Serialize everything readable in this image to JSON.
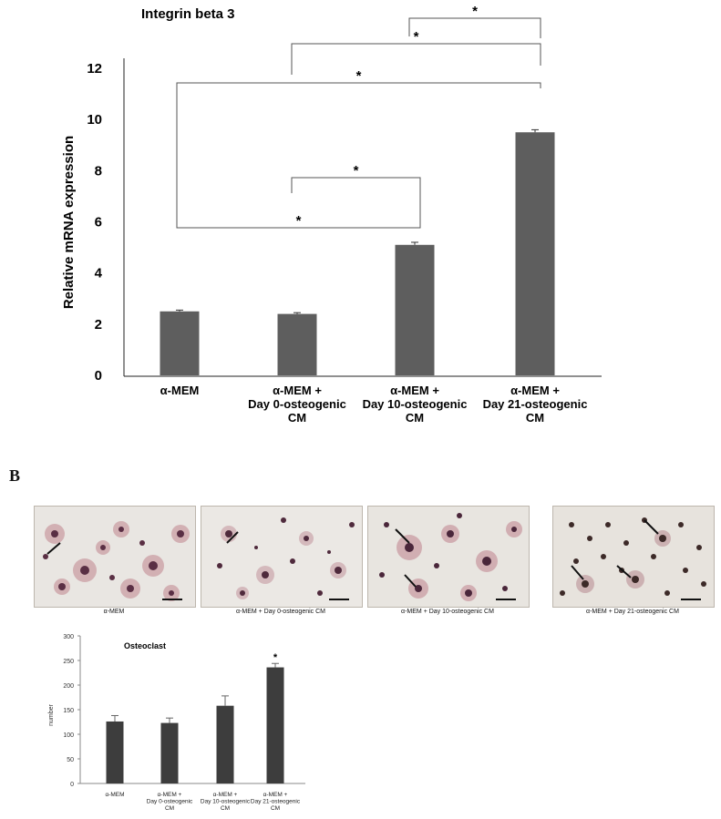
{
  "panel_b_label": "B",
  "chart_data": [
    {
      "type": "bar",
      "title": "Integrin beta 3",
      "ylabel": "Relative  mRNA expression",
      "xlabel": "",
      "ylim": [
        0,
        12
      ],
      "yticks": [
        0,
        2,
        4,
        6,
        8,
        10,
        12
      ],
      "categories": [
        [
          "α-MEM"
        ],
        [
          "α-MEM +",
          "Day 0-osteogenic",
          "CM"
        ],
        [
          "α-MEM +",
          "Day 10-osteogenic",
          "CM"
        ],
        [
          "α-MEM +",
          "Day 21-osteogenic",
          "CM"
        ]
      ],
      "values": [
        2.5,
        2.4,
        5.1,
        9.5
      ],
      "errors": [
        0.05,
        0.05,
        0.1,
        0.1
      ],
      "bar_color": "#5e5e5e",
      "significance": [
        {
          "from": 2,
          "to": 3,
          "label": "*"
        },
        {
          "from": 1,
          "to": 3,
          "label": "*"
        },
        {
          "from": 0,
          "to": 3,
          "label": "*"
        },
        {
          "from": 1,
          "to": 2,
          "label": "*"
        },
        {
          "from": 0,
          "to": 2,
          "label": "*"
        }
      ]
    },
    {
      "type": "bar",
      "title": "Osteoclast",
      "ylabel": "number",
      "xlabel": "",
      "ylim": [
        0,
        300
      ],
      "yticks": [
        0,
        50,
        100,
        150,
        200,
        250,
        300
      ],
      "categories": [
        [
          "α-MEM"
        ],
        [
          "α-MEM +",
          "Day 0-osteogenic",
          "CM"
        ],
        [
          "α-MEM +",
          "Day 10-osteogenic",
          "CM"
        ],
        [
          "α-MEM +",
          "Day 21-osteogenic",
          "CM"
        ]
      ],
      "values": [
        126,
        123,
        158,
        236
      ],
      "errors": [
        12,
        10,
        20,
        8
      ],
      "bar_color": "#3d3d3d",
      "marks": [
        "",
        "",
        "",
        "*"
      ]
    }
  ],
  "micrographs": [
    {
      "caption": "α-MEM"
    },
    {
      "caption": "α-MEM  +  Day 0-osteogenic CM"
    },
    {
      "caption": "α-MEM  +  Day 10-osteogenic CM"
    },
    {
      "caption": "α-MEM  +  Day 21-osteogenic CM"
    }
  ]
}
